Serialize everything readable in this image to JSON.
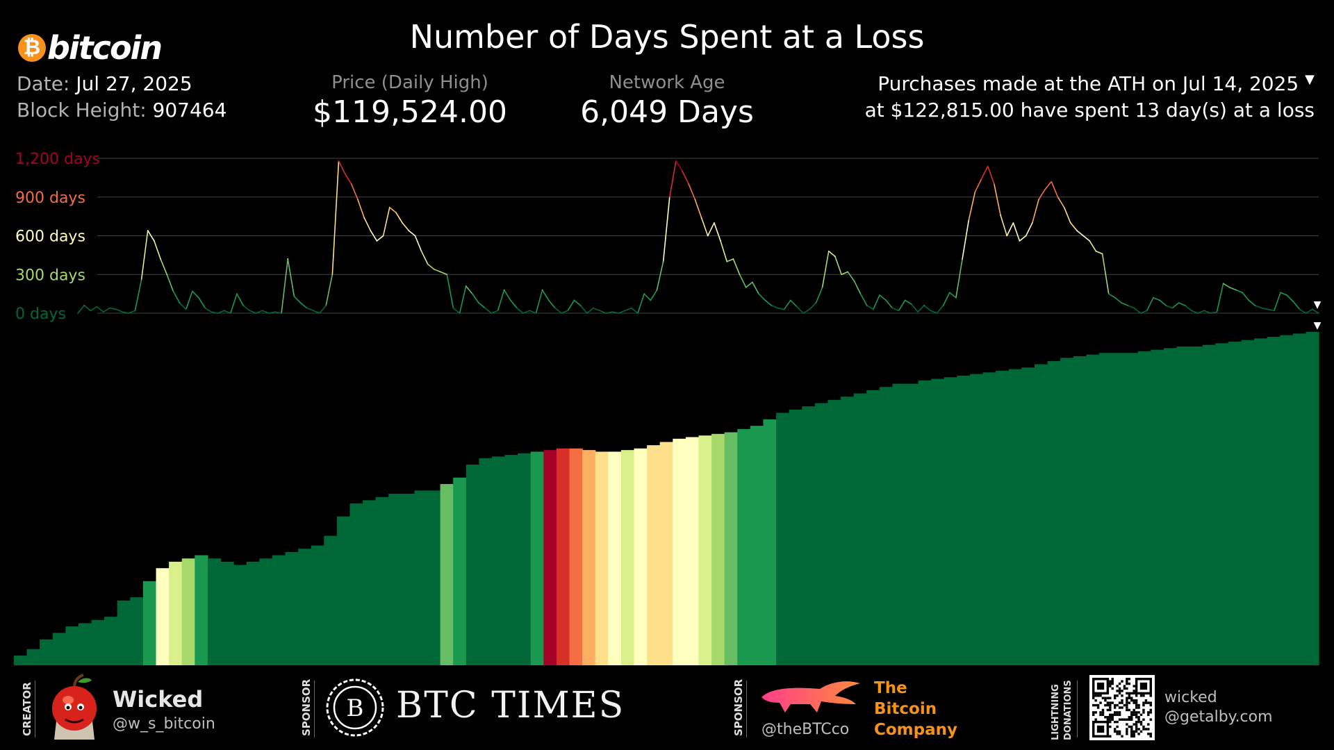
{
  "header": {
    "brand": "bitcoin",
    "brand_symbol": "₿",
    "title": "Number of Days Spent at a Loss",
    "date_label": "Date:",
    "date_value": "Jul 27, 2025",
    "block_label": "Block Height:",
    "block_value": "907464",
    "price_label": "Price (Daily High)",
    "price_value": "$119,524.00",
    "age_label": "Network Age",
    "age_value": "6,049 Days",
    "ath_line1": "Purchases made at the ATH on Jul 14, 2025",
    "ath_line2": "at $122,815.00 have spent 13 day(s) at a loss"
  },
  "chart_data": {
    "type": "line",
    "title": "Number of Days Spent at a Loss",
    "y_ticks": [
      "0 days",
      "300 days",
      "600 days",
      "900 days",
      "1,200 days"
    ],
    "ylim": [
      0,
      1200
    ],
    "grid": true,
    "color_scale": [
      "#006837",
      "#1a9850",
      "#66bd63",
      "#a6d96a",
      "#d9ef8b",
      "#ffffbf",
      "#fee08b",
      "#fdae61",
      "#f46d43",
      "#d73027",
      "#a50026"
    ],
    "series": [
      {
        "values": [
          0,
          60,
          20,
          50,
          10,
          40,
          30,
          10,
          0,
          20,
          260,
          640,
          560,
          420,
          300,
          170,
          80,
          30,
          170,
          120,
          40,
          10,
          0,
          20,
          0,
          150,
          60,
          20,
          0,
          20,
          0,
          10,
          0,
          420,
          130,
          80,
          40,
          20,
          0,
          60,
          300,
          1180,
          1080,
          1000,
          880,
          740,
          640,
          560,
          600,
          820,
          780,
          700,
          640,
          600,
          480,
          380,
          340,
          320,
          300,
          40,
          0,
          210,
          150,
          80,
          40,
          0,
          20,
          180,
          100,
          40,
          0,
          20,
          0,
          180,
          100,
          40,
          0,
          20,
          100,
          60,
          0,
          40,
          20,
          0,
          10,
          0,
          20,
          40,
          0,
          150,
          100,
          180,
          400,
          900,
          1180,
          1100,
          1000,
          880,
          740,
          600,
          700,
          560,
          400,
          420,
          300,
          200,
          240,
          150,
          100,
          60,
          40,
          30,
          100,
          50,
          0,
          30,
          80,
          200,
          480,
          440,
          300,
          320,
          250,
          150,
          60,
          30,
          140,
          100,
          40,
          20,
          100,
          70,
          10,
          60,
          20,
          0,
          60,
          160,
          120,
          420,
          720,
          940,
          1040,
          1140,
          1000,
          760,
          600,
          700,
          560,
          600,
          700,
          880,
          960,
          1020,
          900,
          820,
          700,
          640,
          600,
          560,
          480,
          460,
          150,
          120,
          80,
          60,
          40,
          0,
          20,
          120,
          100,
          60,
          40,
          80,
          60,
          20,
          0,
          20,
          0,
          10,
          230,
          200,
          180,
          160,
          100,
          60,
          40,
          30,
          20,
          160,
          140,
          90,
          30,
          0,
          30,
          0
        ]
      }
    ],
    "lower_panel": {
      "type": "area",
      "description": "",
      "values": [
        30,
        50,
        80,
        100,
        120,
        130,
        140,
        150,
        200,
        210,
        260,
        300,
        320,
        330,
        340,
        330,
        320,
        310,
        320,
        330,
        340,
        350,
        360,
        370,
        400,
        460,
        500,
        510,
        520,
        530,
        530,
        540,
        540,
        560,
        580,
        620,
        640,
        645,
        650,
        655,
        660,
        665,
        670,
        670,
        665,
        660,
        660,
        665,
        670,
        680,
        690,
        700,
        705,
        710,
        715,
        720,
        730,
        740,
        760,
        780,
        790,
        800,
        810,
        820,
        830,
        840,
        850,
        860,
        870,
        870,
        880,
        885,
        890,
        895,
        900,
        905,
        910,
        915,
        920,
        930,
        940,
        950,
        955,
        960,
        965,
        965,
        965,
        970,
        975,
        980,
        985,
        985,
        990,
        995,
        1000,
        1005,
        1010,
        1015,
        1020,
        1025,
        1030
      ],
      "heat": [
        0,
        0,
        0,
        0,
        0,
        0,
        0,
        0,
        0,
        0,
        1,
        5,
        4,
        3,
        1,
        0,
        0,
        0,
        0,
        0,
        0,
        0,
        0,
        0,
        0,
        0,
        0,
        0,
        0,
        0,
        0,
        0,
        0,
        2,
        1,
        0,
        0,
        0,
        0,
        0,
        1,
        10,
        9,
        8,
        7,
        6,
        5,
        4,
        5,
        6,
        6,
        5,
        5,
        4,
        3,
        2,
        1,
        1,
        1,
        0,
        0,
        0,
        0,
        0,
        0,
        0,
        0,
        0,
        0,
        0,
        0,
        0,
        0,
        0,
        0,
        0,
        0,
        0,
        0,
        0,
        0,
        0,
        0,
        0,
        0,
        0,
        0,
        0,
        0,
        0,
        0,
        0,
        0,
        0,
        0,
        0,
        0,
        0,
        0,
        0,
        0
      ]
    }
  },
  "footer": {
    "creator_label": "CREATOR",
    "creator_name": "Wicked",
    "creator_handle": "@w_s_bitcoin",
    "sponsor_label": "SPONSOR",
    "btc_times": "BTC TIMES",
    "btc_times_mark": "B",
    "sponsor2_label": "SPONSOR",
    "tbc_handle": "@theBTCco",
    "tbc_line1": "The",
    "tbc_line2": "Bitcoin",
    "tbc_line3": "Company",
    "ln_label1": "LIGHTNING",
    "ln_label2": "DONATIONS",
    "ln_name": "wicked",
    "ln_addr": "@getalby.com"
  }
}
